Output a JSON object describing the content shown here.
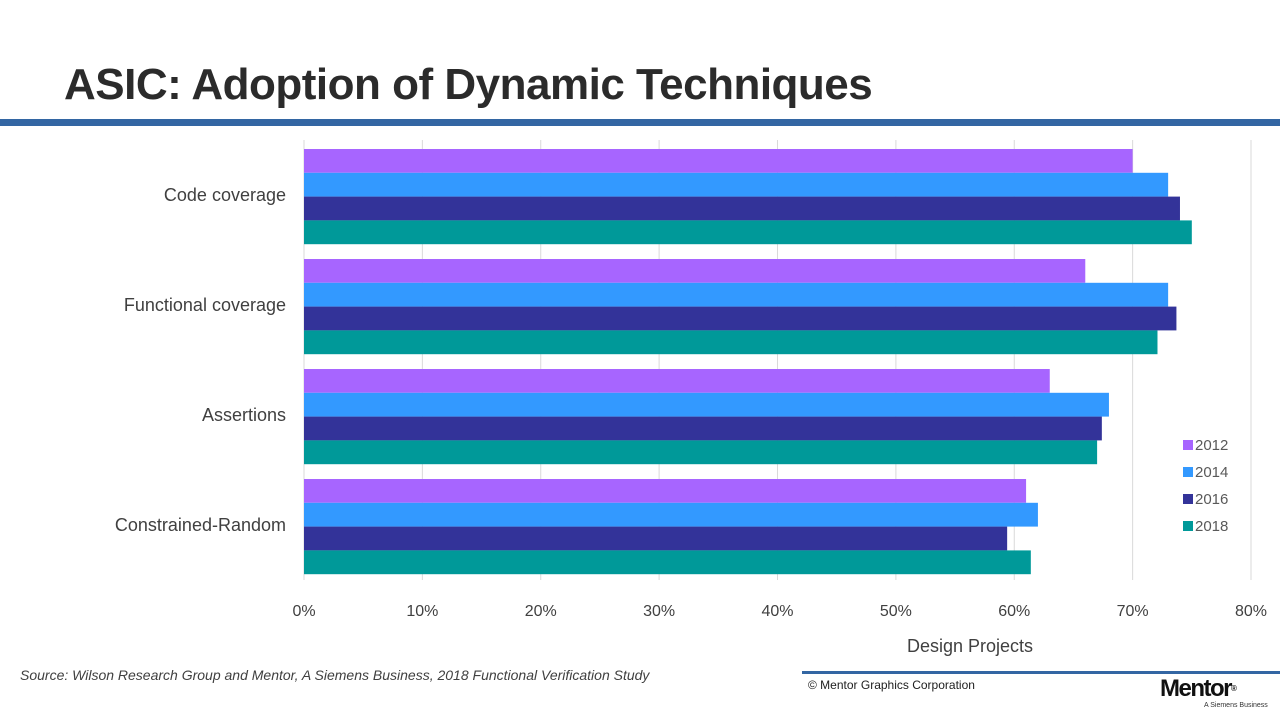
{
  "slide": {
    "title": "ASIC: Adoption of Dynamic Techniques"
  },
  "footer": {
    "source": "Source:  Wilson Research Group and Mentor, A Siemens Business, 2018 Functional Verification Study",
    "copyright": "© Mentor Graphics Corporation",
    "logo_text": "Mentor",
    "logo_mark": "®",
    "logo_subtext": "A Siemens Business"
  },
  "colors": {
    "title_rule": "#3366a3",
    "series_2012": "#a765ff",
    "series_2014": "#3399ff",
    "series_2016": "#333399",
    "series_2018": "#009999"
  },
  "chart_data": {
    "type": "bar",
    "orientation": "horizontal",
    "title": "",
    "xlabel": "Design Projects",
    "ylabel": "",
    "xlim": [
      0,
      80
    ],
    "x_tick_labels": [
      "0%",
      "10%",
      "20%",
      "30%",
      "40%",
      "50%",
      "60%",
      "70%",
      "80%"
    ],
    "x_ticks": [
      0,
      10,
      20,
      30,
      40,
      50,
      60,
      70,
      80
    ],
    "grid": true,
    "legend_position": "right",
    "categories": [
      "Code coverage",
      "Functional coverage",
      "Assertions",
      "Constrained-Random"
    ],
    "series": [
      {
        "name": "2012",
        "color": "#a765ff",
        "values": [
          70,
          66,
          63,
          61
        ]
      },
      {
        "name": "2014",
        "color": "#3399ff",
        "values": [
          73,
          73,
          68,
          62
        ]
      },
      {
        "name": "2016",
        "color": "#333399",
        "values": [
          74,
          73.7,
          67.4,
          59.4
        ]
      },
      {
        "name": "2018",
        "color": "#009999",
        "values": [
          75,
          72.1,
          67,
          61.4
        ]
      }
    ]
  }
}
